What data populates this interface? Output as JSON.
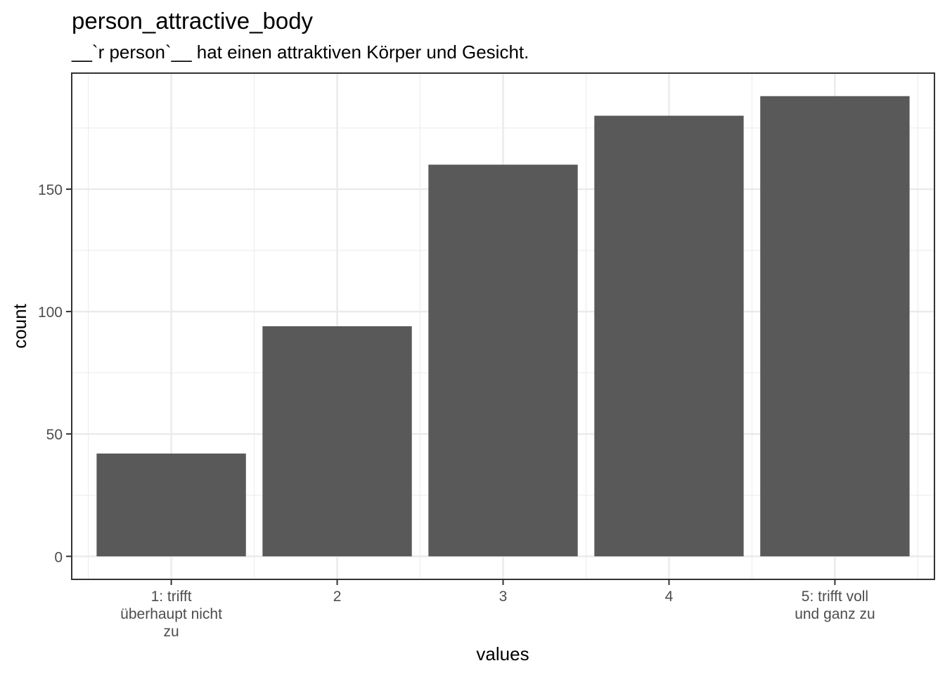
{
  "chart_data": {
    "type": "bar",
    "title": "person_attractive_body",
    "subtitle": "__`r person`__ hat einen attraktiven Körper und Gesicht.",
    "xlabel": "values",
    "ylabel": "count",
    "categories": [
      [
        "1: trifft",
        "überhaupt nicht",
        "zu"
      ],
      [
        "2"
      ],
      [
        "3"
      ],
      [
        "4"
      ],
      [
        "5: trifft voll",
        "und ganz zu"
      ]
    ],
    "values": [
      42,
      94,
      160,
      180,
      188
    ],
    "y_ticks": [
      0,
      50,
      100,
      150
    ],
    "y_tick_labels": [
      "0",
      "50",
      "100",
      "150"
    ],
    "ylim": [
      -9.4,
      197.4
    ],
    "grid": true,
    "bar_color": "#595959",
    "grid_color": "#ebebeb",
    "panel_border_color": "#333333"
  }
}
